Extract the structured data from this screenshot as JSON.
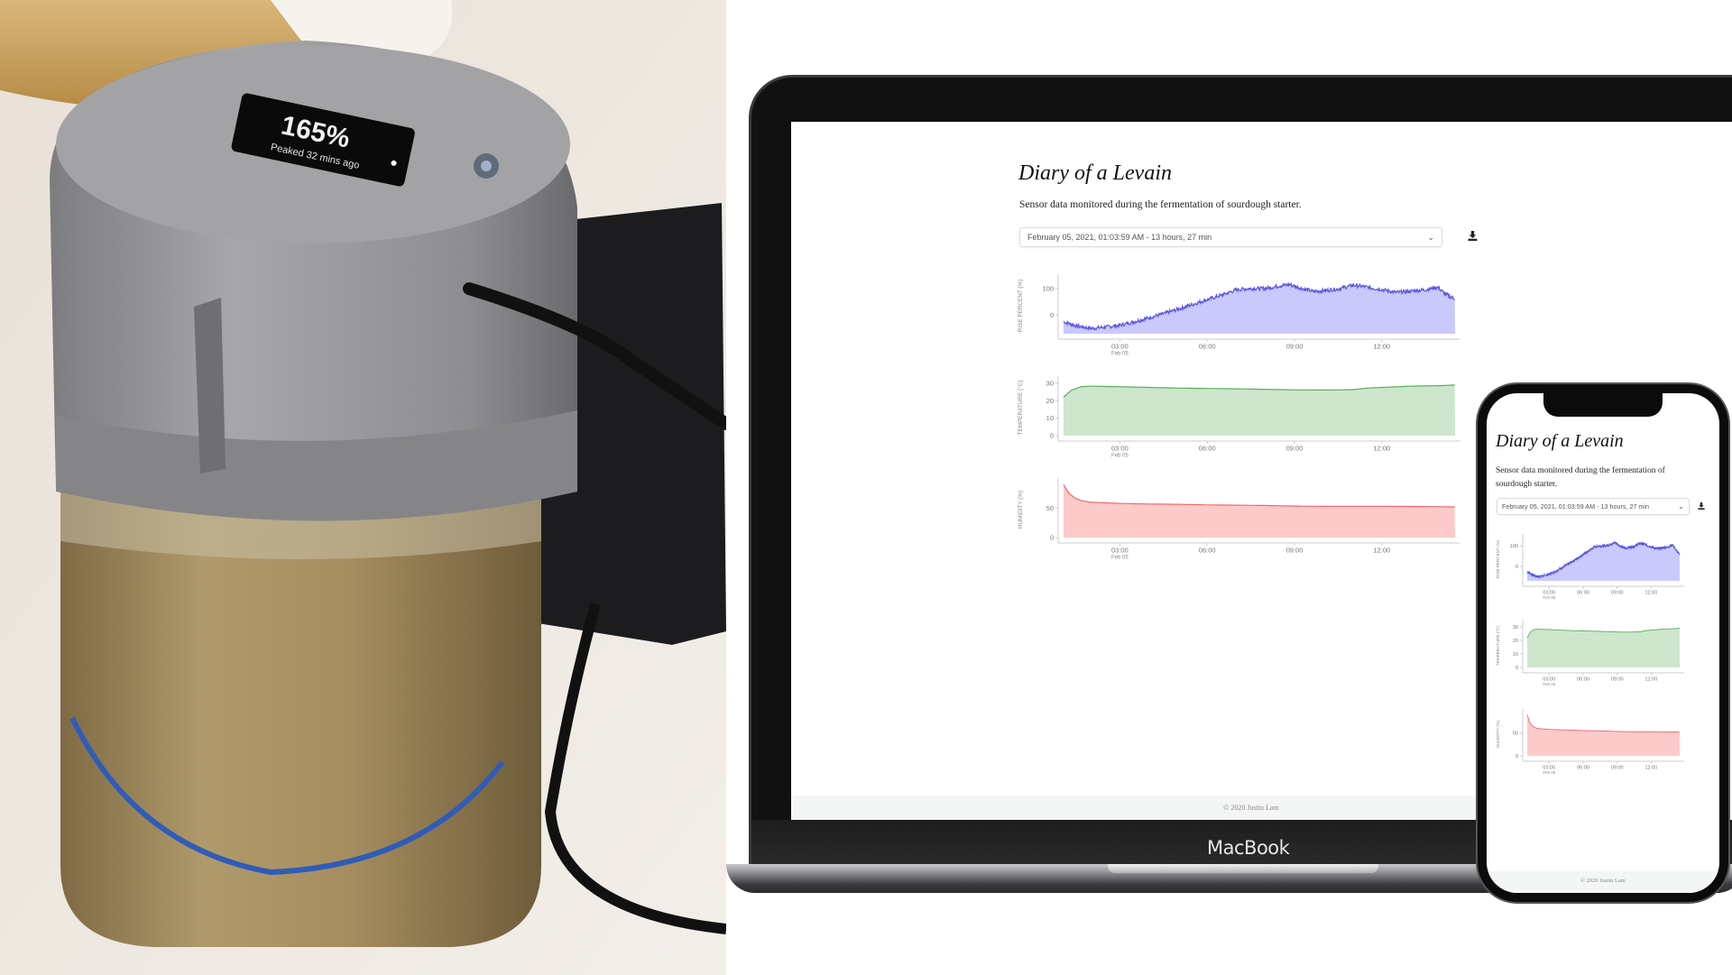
{
  "photo": {
    "oled": {
      "value": "165%",
      "caption": "Peaked 32 mins ago"
    }
  },
  "laptop": {
    "brand": "MacBook"
  },
  "page": {
    "title": "Diary of a Levain",
    "subtitle": "Sensor data monitored during the fermentation of sourdough starter.",
    "session_select": {
      "selected": "February 05, 2021, 01:03:59 AM - 13 hours, 27 min"
    },
    "download_icon": "download-icon",
    "footer": "© 2020 Justin Lam"
  },
  "chart_data": [
    {
      "type": "area",
      "ylabel": "RISE PERCENT (%)",
      "ylim": [
        -70,
        140
      ],
      "yticks": [
        "0",
        "100"
      ],
      "xticks": [
        "03:00",
        "06:00",
        "09:00",
        "12:00"
      ],
      "xtick_sublabel": "Feb 05",
      "xlim": [
        "01:04",
        "14:31"
      ],
      "color": "#5b55e0",
      "fill": "#c9c9fb",
      "x": [
        "01:04",
        "01:30",
        "02:00",
        "02:30",
        "03:00",
        "03:30",
        "04:00",
        "04:30",
        "05:00",
        "05:30",
        "06:00",
        "06:30",
        "07:00",
        "07:30",
        "08:00",
        "08:30",
        "08:50",
        "09:15",
        "09:40",
        "10:00",
        "10:30",
        "11:00",
        "11:20",
        "11:45",
        "12:00",
        "12:30",
        "13:00",
        "13:30",
        "13:55",
        "14:10",
        "14:31"
      ],
      "y": [
        -25,
        -40,
        -50,
        -45,
        -38,
        -25,
        -10,
        5,
        22,
        40,
        58,
        75,
        95,
        100,
        100,
        110,
        115,
        100,
        88,
        92,
        98,
        112,
        108,
        100,
        96,
        85,
        90,
        95,
        105,
        80,
        60
      ]
    },
    {
      "type": "area",
      "ylabel": "TEMPERATURE (°C)",
      "ylim": [
        0,
        32
      ],
      "yticks": [
        "0",
        "10",
        "20",
        "30"
      ],
      "xticks": [
        "03:00",
        "06:00",
        "09:00",
        "12:00"
      ],
      "xtick_sublabel": "Feb 05",
      "xlim": [
        "01:04",
        "14:31"
      ],
      "color": "#5cae5c",
      "fill": "#cde6cc",
      "x": [
        "01:04",
        "01:20",
        "01:40",
        "02:00",
        "03:00",
        "04:00",
        "05:00",
        "06:00",
        "07:00",
        "08:00",
        "09:00",
        "10:00",
        "11:00",
        "11:30",
        "12:00",
        "13:00",
        "14:00",
        "14:31"
      ],
      "y": [
        22,
        26,
        28,
        28.3,
        28,
        27.6,
        27.2,
        27,
        26.8,
        26.5,
        26.2,
        26.1,
        26.3,
        27.2,
        27.6,
        28.3,
        28.6,
        29
      ]
    },
    {
      "type": "area",
      "ylabel": "HUMIDITY (%)",
      "ylim": [
        0,
        95
      ],
      "yticks": [
        "0",
        "50"
      ],
      "xticks": [
        "03:00",
        "06:00",
        "09:00",
        "12:00"
      ],
      "xtick_sublabel": "Feb 05",
      "xlim": [
        "01:04",
        "14:31"
      ],
      "color": "#f06a6a",
      "fill": "#fdcaca",
      "x": [
        "01:04",
        "01:15",
        "01:30",
        "01:45",
        "02:00",
        "03:00",
        "04:00",
        "05:00",
        "06:00",
        "07:00",
        "08:00",
        "09:00",
        "10:00",
        "11:00",
        "12:00",
        "13:00",
        "14:00",
        "14:31"
      ],
      "y": [
        90,
        75,
        66,
        62,
        60,
        58,
        57,
        56.5,
        55.5,
        55,
        54.5,
        53.5,
        53,
        53,
        53,
        52.8,
        52.5,
        52
      ]
    }
  ]
}
